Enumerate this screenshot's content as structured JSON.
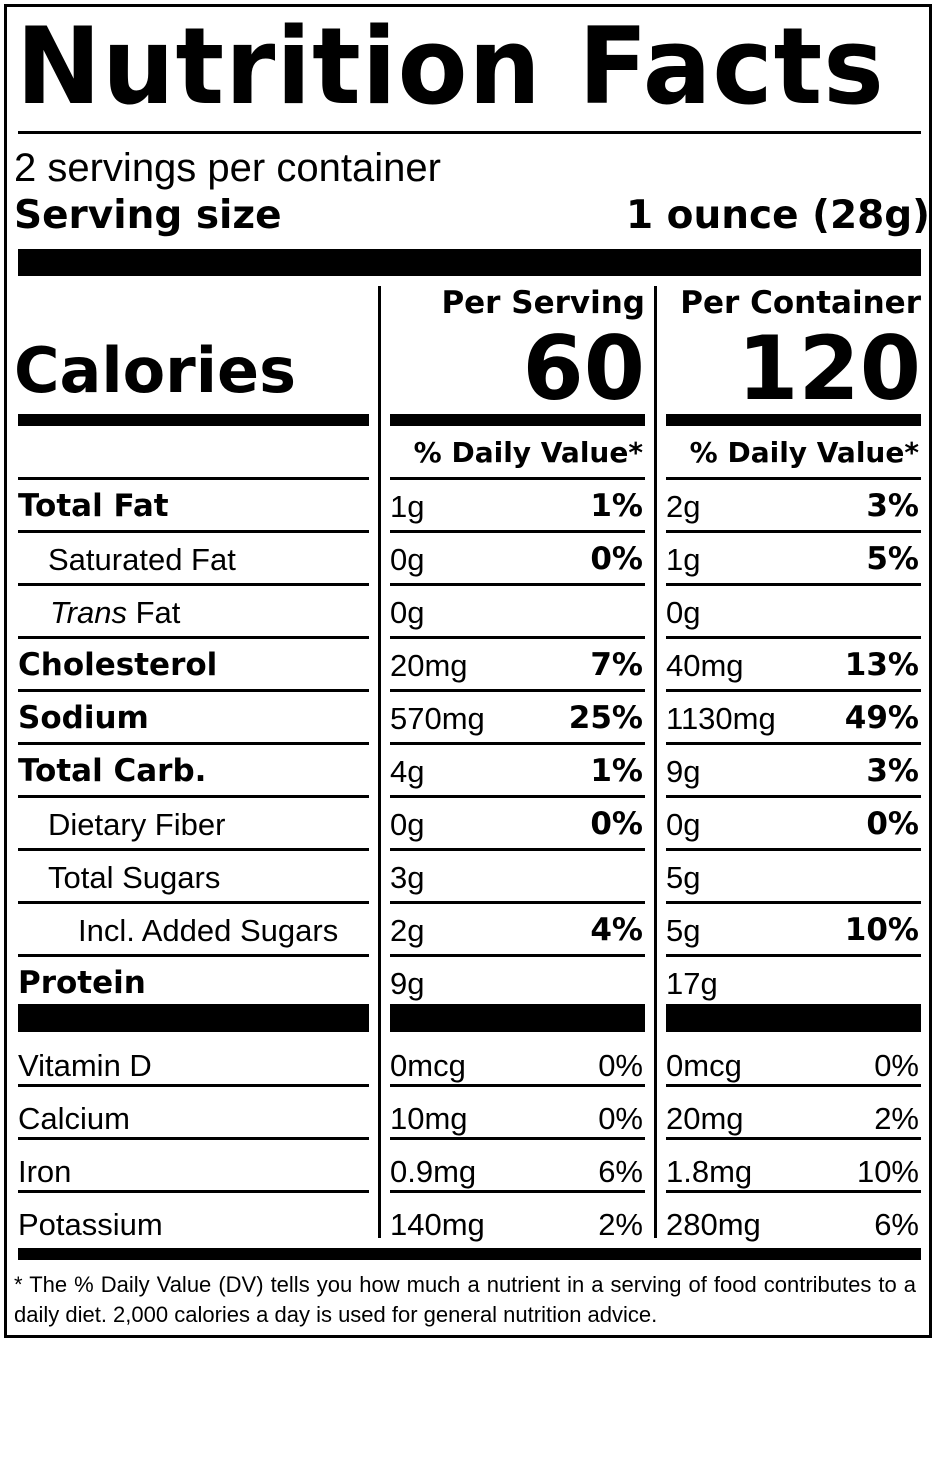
{
  "title": "Nutrition Facts",
  "servings_per_container": "2 servings per container",
  "serving_size_label": "Serving size",
  "serving_size_value": "1 ounce (28g)",
  "calories_label": "Calories",
  "columns": [
    {
      "header": "Per Serving",
      "calories": "60",
      "dv_header": "% Daily Value*"
    },
    {
      "header": "Per Container",
      "calories": "120",
      "dv_header": "% Daily Value*"
    }
  ],
  "nutrients": [
    {
      "name": "Total Fat",
      "style": "bold",
      "indent": 0,
      "serving": {
        "amount": "1g",
        "dv": "1%"
      },
      "container": {
        "amount": "2g",
        "dv": "3%"
      }
    },
    {
      "name": "Saturated Fat",
      "style": "normal",
      "indent": 1,
      "serving": {
        "amount": "0g",
        "dv": "0%"
      },
      "container": {
        "amount": "1g",
        "dv": "5%"
      }
    },
    {
      "name_italic": "Trans",
      "name": " Fat",
      "style": "normal",
      "indent": 1,
      "serving": {
        "amount": "0g",
        "dv": ""
      },
      "container": {
        "amount": "0g",
        "dv": ""
      }
    },
    {
      "name": "Cholesterol",
      "style": "bold",
      "indent": 0,
      "serving": {
        "amount": "20mg",
        "dv": "7%"
      },
      "container": {
        "amount": "40mg",
        "dv": "13%"
      }
    },
    {
      "name": "Sodium",
      "style": "bold",
      "indent": 0,
      "serving": {
        "amount": "570mg",
        "dv": "25%"
      },
      "container": {
        "amount": "1130mg",
        "dv": "49%"
      }
    },
    {
      "name": "Total Carb.",
      "style": "bold",
      "indent": 0,
      "serving": {
        "amount": "4g",
        "dv": "1%"
      },
      "container": {
        "amount": "9g",
        "dv": "3%"
      }
    },
    {
      "name": "Dietary Fiber",
      "style": "normal",
      "indent": 1,
      "serving": {
        "amount": "0g",
        "dv": "0%"
      },
      "container": {
        "amount": "0g",
        "dv": "0%"
      }
    },
    {
      "name": "Total Sugars",
      "style": "normal",
      "indent": 1,
      "serving": {
        "amount": "3g",
        "dv": ""
      },
      "container": {
        "amount": "5g",
        "dv": ""
      }
    },
    {
      "name": "Incl. Added Sugars",
      "style": "normal",
      "indent": 2,
      "serving": {
        "amount": "2g",
        "dv": "4%"
      },
      "container": {
        "amount": "5g",
        "dv": "10%"
      }
    },
    {
      "name": "Protein",
      "style": "bold",
      "indent": 0,
      "serving": {
        "amount": "9g",
        "dv": ""
      },
      "container": {
        "amount": "17g",
        "dv": ""
      }
    }
  ],
  "vitamins": [
    {
      "name": "Vitamin D",
      "serving": {
        "amount": "0mcg",
        "dv": "0%"
      },
      "container": {
        "amount": "0mcg",
        "dv": "0%"
      }
    },
    {
      "name": "Calcium",
      "serving": {
        "amount": "10mg",
        "dv": "0%"
      },
      "container": {
        "amount": "20mg",
        "dv": "2%"
      }
    },
    {
      "name": "Iron",
      "serving": {
        "amount": "0.9mg",
        "dv": "6%"
      },
      "container": {
        "amount": "1.8mg",
        "dv": "10%"
      }
    },
    {
      "name": "Potassium",
      "serving": {
        "amount": "140mg",
        "dv": "2%"
      },
      "container": {
        "amount": "280mg",
        "dv": "6%"
      }
    }
  ],
  "footnote": "* The % Daily Value (DV) tells you how much a nutrient in a serving of food contributes to a daily diet. 2,000 calories a day is used for general nutrition advice."
}
